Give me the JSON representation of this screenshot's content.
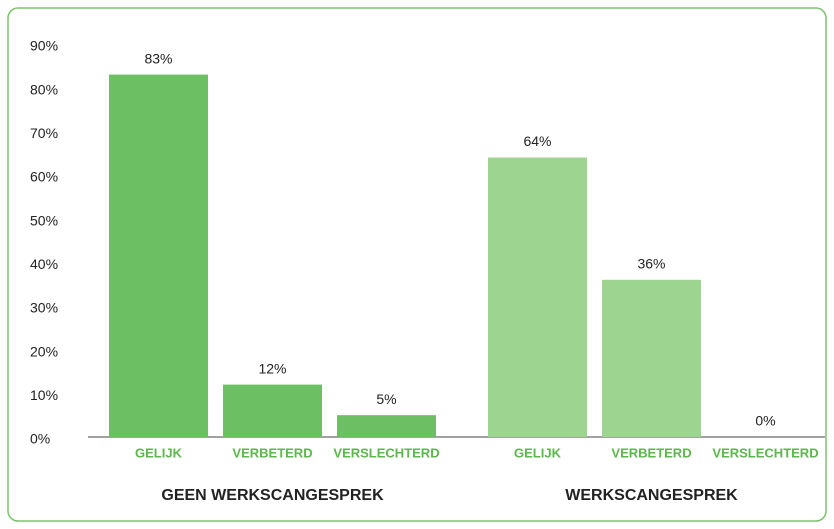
{
  "chart_data": {
    "type": "grouped_bar",
    "ylim": [
      0,
      90
    ],
    "yticks": [
      {
        "value": 0,
        "label": "0%"
      },
      {
        "value": 10,
        "label": "10%"
      },
      {
        "value": 20,
        "label": "20%"
      },
      {
        "value": 30,
        "label": "30%"
      },
      {
        "value": 40,
        "label": "40%"
      },
      {
        "value": 50,
        "label": "50%"
      },
      {
        "value": 60,
        "label": "60%"
      },
      {
        "value": 70,
        "label": "70%"
      },
      {
        "value": 80,
        "label": "80%"
      },
      {
        "value": 90,
        "label": "90%"
      }
    ],
    "groups": [
      {
        "name": "GEEN WERKSCANGESPREK",
        "color": "#6cc063",
        "categories": [
          "GELIJK",
          "VERBETERD",
          "VERSLECHTERD"
        ],
        "values": [
          83,
          12,
          5
        ],
        "value_labels": [
          "83%",
          "12%",
          "5%"
        ]
      },
      {
        "name": "WERKSCANGESPREK",
        "color": "#9dd490",
        "categories": [
          "GELIJK",
          "VERBETERD",
          "VERSLECHTERD"
        ],
        "values": [
          64,
          36,
          0
        ],
        "value_labels": [
          "64%",
          "36%",
          "0%"
        ]
      }
    ]
  }
}
